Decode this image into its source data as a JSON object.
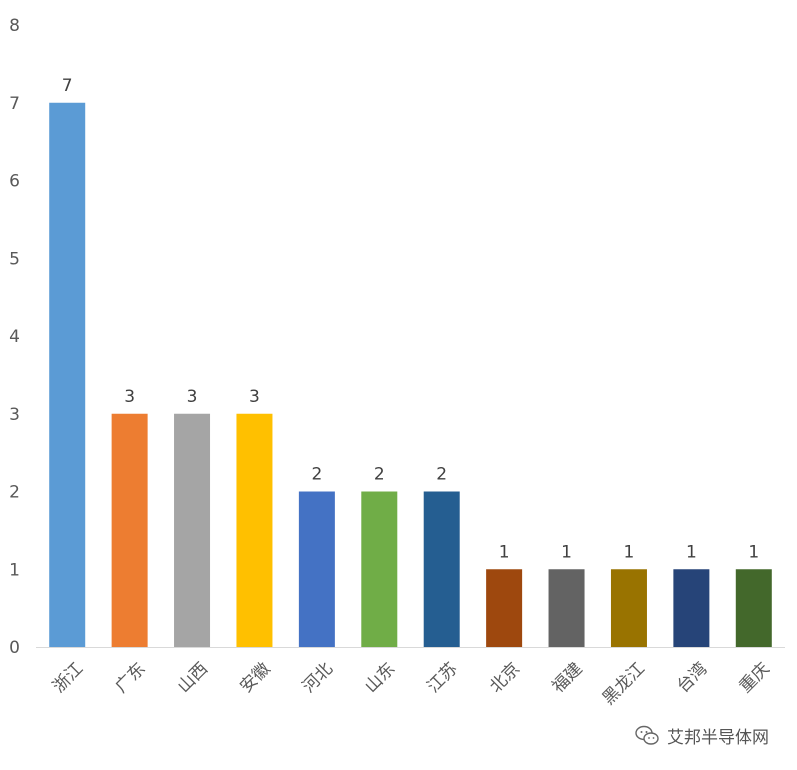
{
  "chart_data": {
    "type": "bar",
    "categories": [
      "浙江",
      "广东",
      "山西",
      "安徽",
      "河北",
      "山东",
      "江苏",
      "北京",
      "福建",
      "黑龙江",
      "台湾",
      "重庆"
    ],
    "values": [
      7,
      3,
      3,
      3,
      2,
      2,
      2,
      1,
      1,
      1,
      1,
      1
    ],
    "colors": [
      "#5B9BD5",
      "#ED7D31",
      "#A5A5A5",
      "#FFC000",
      "#4472C4",
      "#70AD47",
      "#255E91",
      "#9E480E",
      "#636363",
      "#997300",
      "#264478",
      "#43682B"
    ],
    "ylim": [
      0,
      8
    ],
    "yticks": [
      0,
      1,
      2,
      3,
      4,
      5,
      6,
      7,
      8
    ],
    "grid": false,
    "data_labels": true,
    "title": "",
    "xlabel": "",
    "ylabel": ""
  },
  "watermark": {
    "text": "艾邦半导体网",
    "icon": "wechat-icon"
  }
}
